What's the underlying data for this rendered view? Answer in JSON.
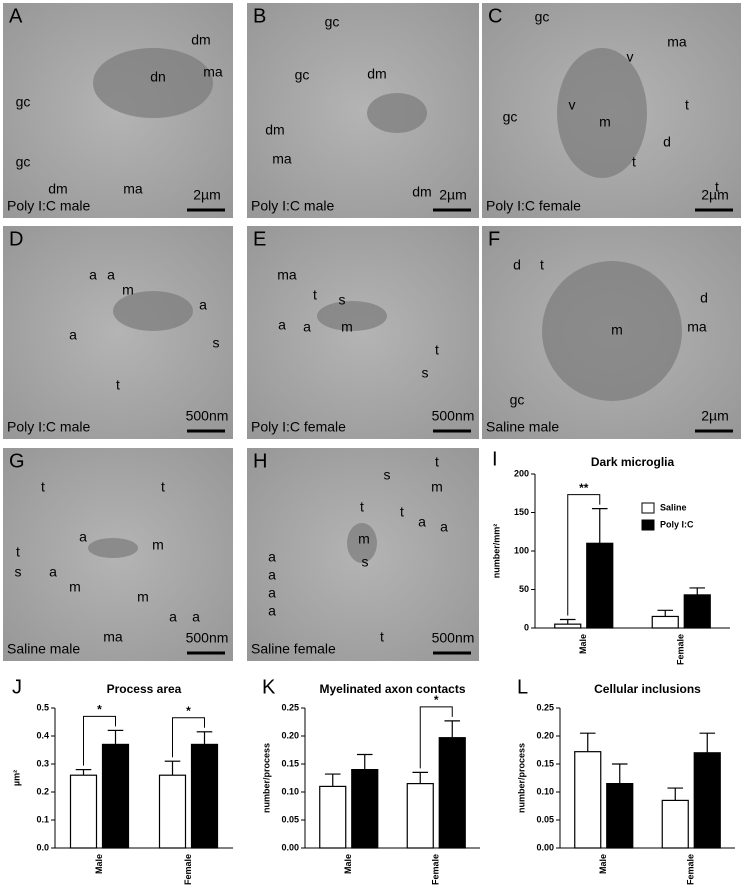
{
  "panels": [
    {
      "letter": "A",
      "caption": "Poly I:C male",
      "scale": "2µm",
      "labels": [
        "dm",
        "dn",
        "ma",
        "gc",
        "gc",
        "dm",
        "ma"
      ]
    },
    {
      "letter": "B",
      "caption": "Poly I:C male",
      "scale": "2µm",
      "labels": [
        "gc",
        "gc",
        "dm",
        "dm",
        "ma",
        "dm"
      ]
    },
    {
      "letter": "C",
      "caption": "Poly I:C female",
      "scale": "2µm",
      "labels": [
        "gc",
        "ma",
        "v",
        "v",
        "m",
        "t",
        "gc",
        "d",
        "t",
        "t"
      ]
    },
    {
      "letter": "D",
      "caption": "Poly I:C male",
      "scale": "500nm",
      "labels": [
        "a",
        "a",
        "m",
        "a",
        "a",
        "s",
        "t"
      ]
    },
    {
      "letter": "E",
      "caption": "Poly I:C female",
      "scale": "500nm",
      "labels": [
        "ma",
        "t",
        "s",
        "a",
        "a",
        "m",
        "t",
        "s"
      ]
    },
    {
      "letter": "F",
      "caption": "Saline male",
      "scale": "2µm",
      "labels": [
        "d",
        "t",
        "m",
        "d",
        "ma",
        "gc"
      ]
    },
    {
      "letter": "G",
      "caption": "Saline male",
      "scale": "500nm",
      "labels": [
        "t",
        "t",
        "a",
        "t",
        "m",
        "a",
        "m",
        "s",
        "m",
        "a",
        "a",
        "ma"
      ]
    },
    {
      "letter": "H",
      "caption": "Saline female",
      "scale": "500nm",
      "labels": [
        "t",
        "s",
        "m",
        "t",
        "t",
        "a",
        "a",
        "m",
        "a",
        "a",
        "a",
        "a",
        "s",
        "t"
      ]
    }
  ],
  "chart_data": [
    {
      "type": "bar",
      "letter": "I",
      "title": "Dark microglia",
      "y_label": "number/mm²",
      "categories": [
        "Male",
        "Female"
      ],
      "series": [
        {
          "name": "Saline",
          "color": "#ffffff",
          "values": [
            5,
            15
          ],
          "errors": [
            6,
            8
          ]
        },
        {
          "name": "Poly I:C",
          "color": "#000000",
          "values": [
            110,
            43
          ],
          "errors": [
            45,
            9
          ]
        }
      ],
      "ylim": [
        0,
        200
      ],
      "yticks": [
        0,
        50,
        100,
        150,
        200
      ],
      "legend": "upper right",
      "significance": [
        {
          "category": "Male",
          "label": "**"
        }
      ]
    },
    {
      "type": "bar",
      "letter": "J",
      "title": "Process area",
      "y_label": "µm²",
      "categories": [
        "Male",
        "Female"
      ],
      "series": [
        {
          "color": "#ffffff",
          "values": [
            0.26,
            0.26
          ],
          "errors": [
            0.02,
            0.05
          ]
        },
        {
          "color": "#000000",
          "values": [
            0.37,
            0.37
          ],
          "errors": [
            0.05,
            0.045
          ]
        }
      ],
      "ylim": [
        0,
        0.5
      ],
      "yticks": [
        {
          "value": 0,
          "label": "0.0"
        },
        0.1,
        0.2,
        0.3,
        0.4,
        0.5
      ],
      "significance": [
        {
          "category": "Male",
          "label": "*"
        },
        {
          "category": "Female",
          "label": "*"
        }
      ]
    },
    {
      "type": "bar",
      "letter": "K",
      "title": "Myelinated axon contacts",
      "y_label": "number/process",
      "categories": [
        "Male",
        "Female"
      ],
      "series": [
        {
          "color": "#ffffff",
          "values": [
            0.11,
            0.115
          ],
          "errors": [
            0.022,
            0.02
          ]
        },
        {
          "color": "#000000",
          "values": [
            0.14,
            0.197
          ],
          "errors": [
            0.027,
            0.03
          ]
        }
      ],
      "ylim": [
        0,
        0.25
      ],
      "yticks": [
        {
          "value": 0,
          "label": "0.00"
        },
        {
          "value": 0.05,
          "label": "0.05"
        },
        {
          "value": 0.1,
          "label": "0.10"
        },
        {
          "value": 0.15,
          "label": "0.15"
        },
        {
          "value": 0.2,
          "label": "0.20"
        },
        {
          "value": 0.25,
          "label": "0.25"
        }
      ],
      "significance": [
        {
          "category": "Female",
          "label": "*"
        }
      ]
    },
    {
      "type": "bar",
      "letter": "L",
      "title": "Cellular inclusions",
      "y_label": "number/process",
      "categories": [
        "Male",
        "Female"
      ],
      "series": [
        {
          "color": "#ffffff",
          "values": [
            0.172,
            0.085
          ],
          "errors": [
            0.033,
            0.022
          ]
        },
        {
          "color": "#000000",
          "values": [
            0.115,
            0.17
          ],
          "errors": [
            0.035,
            0.035
          ]
        }
      ],
      "ylim": [
        0,
        0.25
      ],
      "yticks": [
        {
          "value": 0,
          "label": "0.00"
        },
        {
          "value": 0.05,
          "label": "0.05"
        },
        {
          "value": 0.1,
          "label": "0.10"
        },
        {
          "value": 0.15,
          "label": "0.15"
        },
        {
          "value": 0.2,
          "label": "0.20"
        },
        {
          "value": 0.25,
          "label": "0.25"
        }
      ],
      "significance": []
    }
  ]
}
